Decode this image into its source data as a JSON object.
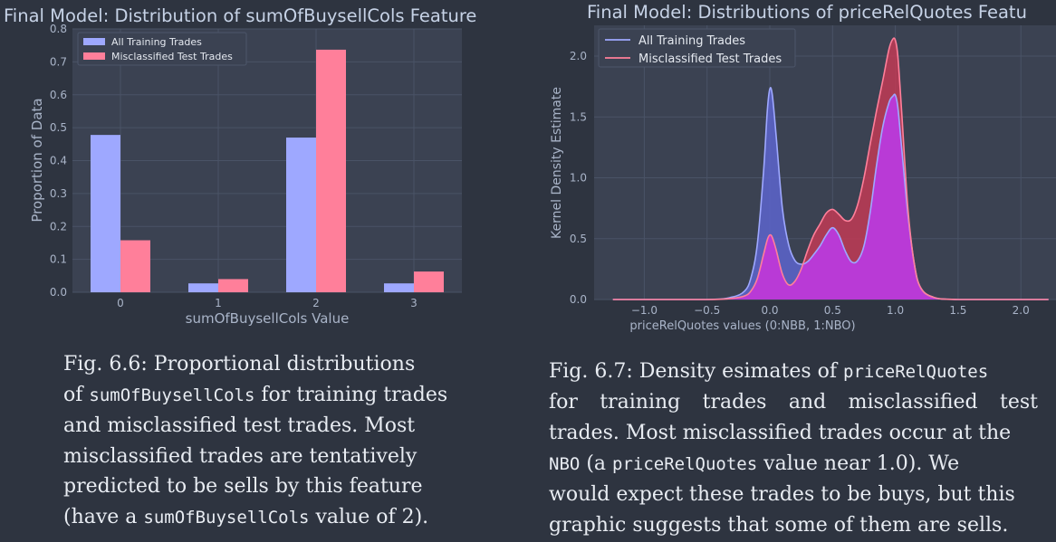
{
  "colors": {
    "background": "#2e3440",
    "plot_bg": "#3b4252",
    "grid": "#4a5366",
    "text": "#a9b4c8",
    "blue": "#9ea8ff",
    "pink": "#ff7f9a"
  },
  "chart_data": [
    {
      "type": "bar",
      "title": "Final Model: Distribution of sumOfBuysellCols Feature",
      "xlabel": "sumOfBuysellCols Value",
      "ylabel": "Proportion of Data",
      "categories": [
        "0",
        "1",
        "2",
        "3"
      ],
      "ylim": [
        0,
        0.8
      ],
      "yticks": [
        "0.0",
        "0.1",
        "0.2",
        "0.3",
        "0.4",
        "0.5",
        "0.6",
        "0.7",
        "0.8"
      ],
      "grid": true,
      "legend": "top-left",
      "series": [
        {
          "name": "All Training Trades",
          "color": "#9ea8ff",
          "values": [
            0.478,
            0.027,
            0.47,
            0.027
          ]
        },
        {
          "name": "Misclassified Test Trades",
          "color": "#ff7f9a",
          "values": [
            0.158,
            0.04,
            0.737,
            0.063
          ]
        }
      ]
    },
    {
      "type": "area",
      "title": "Final Model: Distributions of priceRelQuotes Featu",
      "xlabel": "priceRelQuotes values (0:NBB, 1:NBO)",
      "ylabel": "Kernel Density Estimate",
      "xlim": [
        -1.25,
        2.22
      ],
      "ylim": [
        0,
        2.28
      ],
      "xticks": [
        "−1.0",
        "−0.5",
        "0.0",
        "0.5",
        "1.0",
        "1.5",
        "2.0"
      ],
      "yticks": [
        "0.0",
        "0.5",
        "1.0",
        "1.5",
        "2.0"
      ],
      "grid": true,
      "legend": "top-left",
      "series": [
        {
          "name": "All Training Trades",
          "color": "#9ea8ff",
          "fill": "#5d64cc",
          "x": [
            -1.25,
            -0.5,
            -0.3,
            -0.2,
            -0.15,
            -0.1,
            -0.05,
            -0.02,
            0.0,
            0.02,
            0.05,
            0.1,
            0.15,
            0.2,
            0.25,
            0.3,
            0.35,
            0.4,
            0.45,
            0.5,
            0.55,
            0.6,
            0.65,
            0.7,
            0.75,
            0.8,
            0.85,
            0.9,
            0.95,
            0.98,
            1.0,
            1.02,
            1.05,
            1.1,
            1.15,
            1.2,
            1.3,
            1.5,
            2.22
          ],
          "y": [
            0.0,
            0.0,
            0.02,
            0.07,
            0.18,
            0.45,
            1.05,
            1.55,
            1.73,
            1.68,
            1.35,
            0.75,
            0.45,
            0.32,
            0.29,
            0.31,
            0.37,
            0.44,
            0.53,
            0.59,
            0.53,
            0.4,
            0.31,
            0.32,
            0.44,
            0.72,
            1.1,
            1.42,
            1.62,
            1.67,
            1.68,
            1.58,
            1.25,
            0.7,
            0.3,
            0.1,
            0.02,
            0.0,
            0.0
          ]
        },
        {
          "name": "Misclassified Test Trades",
          "color": "#ff7f9a",
          "fill": "#c13a55",
          "x": [
            -1.25,
            -0.5,
            -0.3,
            -0.2,
            -0.15,
            -0.1,
            -0.05,
            -0.02,
            0.0,
            0.02,
            0.05,
            0.1,
            0.15,
            0.2,
            0.25,
            0.3,
            0.35,
            0.4,
            0.45,
            0.5,
            0.55,
            0.6,
            0.65,
            0.7,
            0.75,
            0.8,
            0.85,
            0.9,
            0.95,
            0.98,
            1.0,
            1.02,
            1.05,
            1.1,
            1.15,
            1.2,
            1.3,
            1.5,
            2.22
          ],
          "y": [
            0.0,
            0.0,
            0.01,
            0.03,
            0.07,
            0.17,
            0.37,
            0.49,
            0.53,
            0.51,
            0.41,
            0.21,
            0.12,
            0.15,
            0.25,
            0.4,
            0.53,
            0.62,
            0.71,
            0.74,
            0.7,
            0.65,
            0.66,
            0.78,
            1.0,
            1.28,
            1.55,
            1.8,
            2.06,
            2.14,
            2.13,
            2.0,
            1.55,
            0.75,
            0.3,
            0.1,
            0.02,
            0.0,
            0.0
          ]
        }
      ]
    }
  ],
  "captions": {
    "left": {
      "l1": "Fig. 6.6: Proportional distributions",
      "l2a": "of ",
      "l2b": "sumOfBuysellCols",
      "l2c": " for training trades",
      "l3": "and misclassified test trades. Most",
      "l4": "misclassified trades are tentatively",
      "l5": "predicted to be sells by this feature",
      "l6a": "(have a ",
      "l6b": "sumOfBuysellCols",
      "l6c": " value of 2)."
    },
    "right": {
      "l1a": "Fig. 6.7: Density esimates of ",
      "l1b": "priceRelQuotes",
      "l2": "for training trades and misclassified test",
      "l3": "trades. Most misclassified trades occur at the",
      "l4a": "NBO",
      "l4b": " (a ",
      "l4c": "priceRelQuotes",
      "l4d": " value near 1.0). We",
      "l5": "would expect these trades to be buys, but this",
      "l6": "graphic suggests that some of them are sells."
    }
  }
}
